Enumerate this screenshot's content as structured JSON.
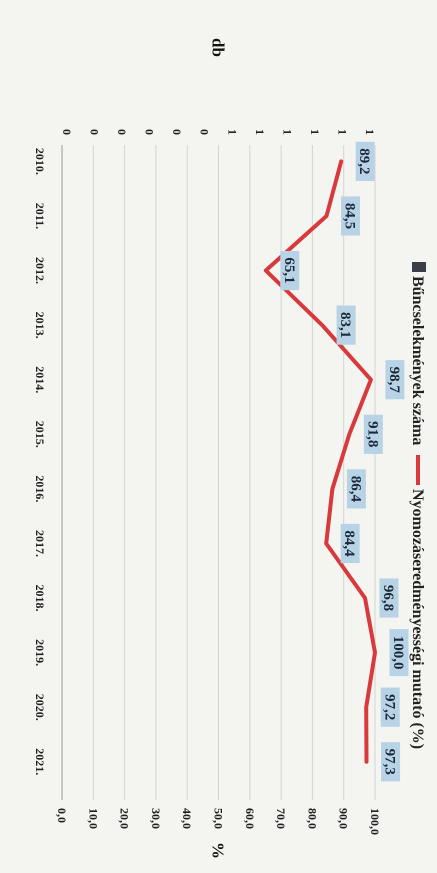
{
  "chart_data": {
    "type": "line",
    "title": "",
    "legend": {
      "position": "top",
      "entries": [
        {
          "label": "Bűncselekmények száma",
          "color": "#3a3f47",
          "kind": "bar"
        },
        {
          "label": "Nyomozáseredményességi mutató (%)",
          "color": "#d9393b",
          "kind": "line"
        }
      ]
    },
    "categories": [
      "2010.",
      "2011.",
      "2012.",
      "2013.",
      "2014.",
      "2015.",
      "2016.",
      "2017.",
      "2018.",
      "2019.",
      "2020.",
      "2021."
    ],
    "series": [
      {
        "name": "Nyomozáseredményességi mutató (%)",
        "axis": "right",
        "values": [
          89.2,
          84.5,
          65.1,
          83.1,
          98.7,
          91.8,
          86.4,
          84.4,
          96.8,
          100.0,
          97.2,
          97.3
        ],
        "labels": [
          "89,2",
          "84,5",
          "65,1",
          "83,1",
          "98,7",
          "91,8",
          "86,4",
          "84,4",
          "96,8",
          "100,0",
          "97,2",
          "97,3"
        ],
        "color": "#d9393b"
      }
    ],
    "left_axis": {
      "label": "db",
      "ticks": [
        "1",
        "1",
        "1",
        "1",
        "1",
        "1",
        "0",
        "0",
        "0",
        "0",
        "0",
        "0"
      ]
    },
    "right_axis": {
      "label": "%",
      "ylim": [
        0,
        100
      ],
      "ticks": [
        "100,0",
        "90,0",
        "80,0",
        "70,0",
        "60,0",
        "50,0",
        "40,0",
        "30,0",
        "20,0",
        "10,0",
        "0,0"
      ]
    },
    "grid": true
  }
}
